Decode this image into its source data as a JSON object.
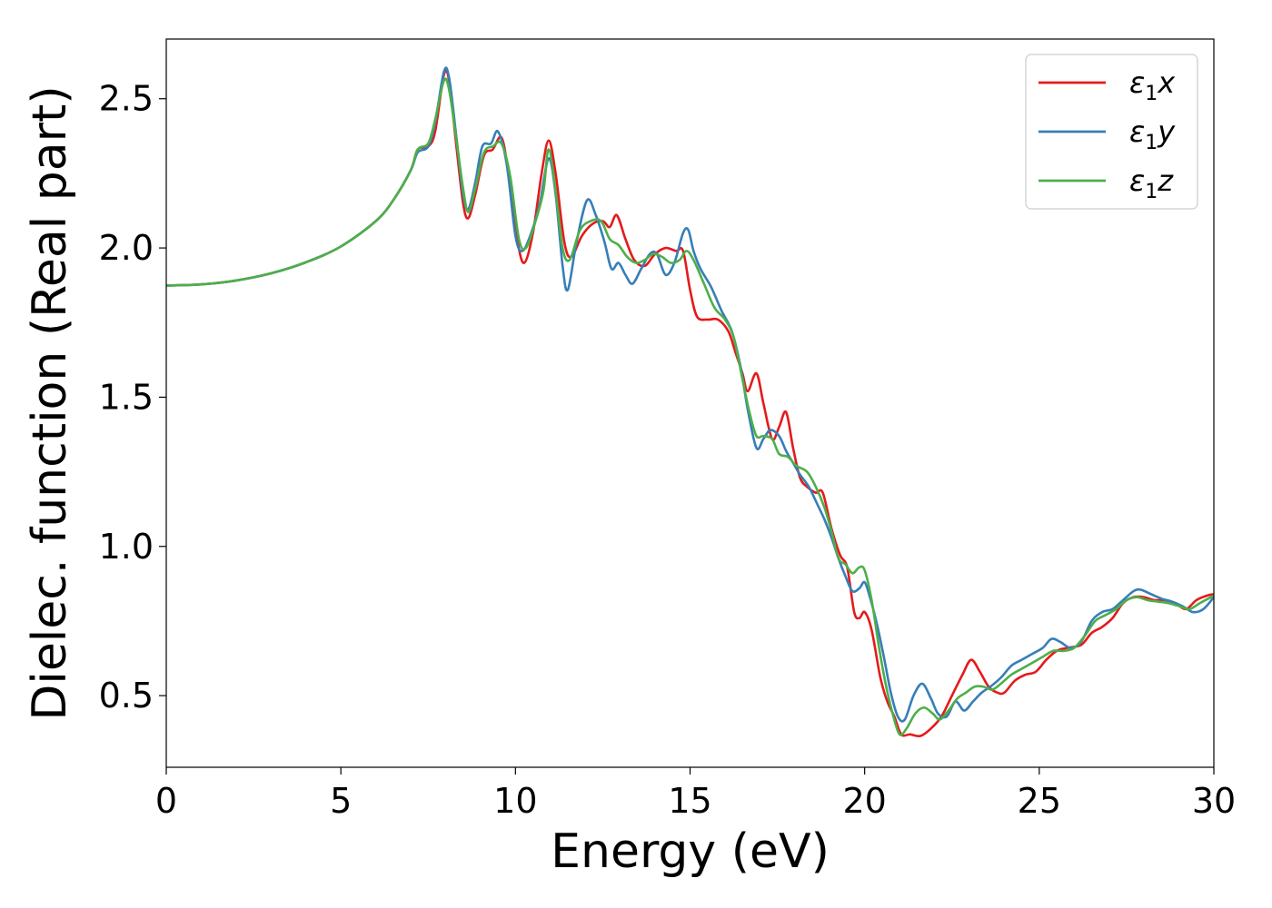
{
  "colors": {
    "x": "#e41a1c",
    "y": "#377eb8",
    "z": "#4daf4a"
  },
  "chart_data": {
    "type": "line",
    "title": "",
    "xlabel": "Energy (eV)",
    "ylabel": "Dielec. function (Real part)",
    "xlim": [
      0,
      30
    ],
    "ylim": [
      0.26,
      2.7
    ],
    "xticks": [
      0,
      5,
      10,
      15,
      20,
      25,
      30
    ],
    "xtick_labels": [
      "0",
      "5",
      "10",
      "15",
      "20",
      "25",
      "30"
    ],
    "yticks": [
      0.5,
      1.0,
      1.5,
      2.0,
      2.5
    ],
    "ytick_labels": [
      "0.5",
      "1.0",
      "1.5",
      "2.0",
      "2.5"
    ],
    "grid": false,
    "legend_position": "top-right",
    "series": [
      {
        "name": "ε1x",
        "symbol": "ε",
        "sub": "1",
        "suffix": "x",
        "color": "#e41a1c",
        "points": [
          [
            0,
            1.874
          ],
          [
            1,
            1.878
          ],
          [
            2,
            1.891
          ],
          [
            3,
            1.915
          ],
          [
            4,
            1.952
          ],
          [
            5,
            2.005
          ],
          [
            6,
            2.09
          ],
          [
            6.5,
            2.16
          ],
          [
            7,
            2.26
          ],
          [
            7.2,
            2.33
          ],
          [
            7.5,
            2.34
          ],
          [
            7.7,
            2.39
          ],
          [
            7.95,
            2.58
          ],
          [
            8.1,
            2.56
          ],
          [
            8.3,
            2.35
          ],
          [
            8.5,
            2.15
          ],
          [
            8.65,
            2.1
          ],
          [
            8.85,
            2.18
          ],
          [
            9.1,
            2.31
          ],
          [
            9.35,
            2.33
          ],
          [
            9.6,
            2.37
          ],
          [
            9.8,
            2.25
          ],
          [
            10.05,
            2.03
          ],
          [
            10.25,
            1.95
          ],
          [
            10.5,
            2.05
          ],
          [
            10.75,
            2.25
          ],
          [
            10.95,
            2.36
          ],
          [
            11.15,
            2.25
          ],
          [
            11.4,
            2.02
          ],
          [
            11.6,
            1.97
          ],
          [
            11.9,
            2.04
          ],
          [
            12.2,
            2.08
          ],
          [
            12.5,
            2.09
          ],
          [
            12.7,
            2.07
          ],
          [
            12.9,
            2.11
          ],
          [
            13.15,
            2.03
          ],
          [
            13.4,
            1.96
          ],
          [
            13.7,
            1.94
          ],
          [
            14,
            1.98
          ],
          [
            14.3,
            2
          ],
          [
            14.6,
            1.99
          ],
          [
            14.8,
            1.99
          ],
          [
            15,
            1.86
          ],
          [
            15.2,
            1.77
          ],
          [
            15.5,
            1.76
          ],
          [
            15.8,
            1.76
          ],
          [
            16.1,
            1.72
          ],
          [
            16.3,
            1.65
          ],
          [
            16.5,
            1.58
          ],
          [
            16.65,
            1.52
          ],
          [
            16.9,
            1.58
          ],
          [
            17.1,
            1.48
          ],
          [
            17.35,
            1.36
          ],
          [
            17.55,
            1.4
          ],
          [
            17.75,
            1.45
          ],
          [
            17.95,
            1.33
          ],
          [
            18.15,
            1.23
          ],
          [
            18.35,
            1.2
          ],
          [
            18.6,
            1.18
          ],
          [
            18.8,
            1.18
          ],
          [
            19.05,
            1.06
          ],
          [
            19.3,
            0.97
          ],
          [
            19.5,
            0.93
          ],
          [
            19.7,
            0.78
          ],
          [
            19.85,
            0.76
          ],
          [
            20,
            0.78
          ],
          [
            20.2,
            0.72
          ],
          [
            20.45,
            0.56
          ],
          [
            20.65,
            0.48
          ],
          [
            20.85,
            0.43
          ],
          [
            21.05,
            0.37
          ],
          [
            21.3,
            0.37
          ],
          [
            21.6,
            0.365
          ],
          [
            21.9,
            0.39
          ],
          [
            22.2,
            0.43
          ],
          [
            22.5,
            0.5
          ],
          [
            22.8,
            0.57
          ],
          [
            23.05,
            0.62
          ],
          [
            23.3,
            0.58
          ],
          [
            23.55,
            0.53
          ],
          [
            23.8,
            0.51
          ],
          [
            24,
            0.51
          ],
          [
            24.3,
            0.55
          ],
          [
            24.6,
            0.57
          ],
          [
            24.9,
            0.58
          ],
          [
            25.2,
            0.62
          ],
          [
            25.5,
            0.65
          ],
          [
            25.8,
            0.66
          ],
          [
            26.2,
            0.67
          ],
          [
            26.5,
            0.71
          ],
          [
            26.8,
            0.73
          ],
          [
            27.1,
            0.76
          ],
          [
            27.4,
            0.81
          ],
          [
            27.7,
            0.83
          ],
          [
            28,
            0.83
          ],
          [
            28.3,
            0.82
          ],
          [
            28.6,
            0.82
          ],
          [
            28.9,
            0.81
          ],
          [
            29.2,
            0.79
          ],
          [
            29.5,
            0.82
          ],
          [
            29.8,
            0.835
          ],
          [
            30,
            0.84
          ]
        ]
      },
      {
        "name": "ε1y",
        "symbol": "ε",
        "sub": "1",
        "suffix": "y",
        "color": "#377eb8",
        "points": [
          [
            0,
            1.874
          ],
          [
            1,
            1.878
          ],
          [
            2,
            1.891
          ],
          [
            3,
            1.915
          ],
          [
            4,
            1.952
          ],
          [
            5,
            2.005
          ],
          [
            6,
            2.09
          ],
          [
            6.5,
            2.16
          ],
          [
            7,
            2.26
          ],
          [
            7.2,
            2.32
          ],
          [
            7.5,
            2.34
          ],
          [
            7.7,
            2.42
          ],
          [
            7.95,
            2.59
          ],
          [
            8.1,
            2.57
          ],
          [
            8.3,
            2.38
          ],
          [
            8.5,
            2.18
          ],
          [
            8.65,
            2.13
          ],
          [
            8.85,
            2.22
          ],
          [
            9.05,
            2.34
          ],
          [
            9.3,
            2.35
          ],
          [
            9.5,
            2.39
          ],
          [
            9.75,
            2.28
          ],
          [
            10,
            2.04
          ],
          [
            10.2,
            1.99
          ],
          [
            10.45,
            2.05
          ],
          [
            10.7,
            2.15
          ],
          [
            10.95,
            2.3
          ],
          [
            11.15,
            2.18
          ],
          [
            11.35,
            1.94
          ],
          [
            11.5,
            1.86
          ],
          [
            11.75,
            2.02
          ],
          [
            12.05,
            2.16
          ],
          [
            12.3,
            2.11
          ],
          [
            12.55,
            2.02
          ],
          [
            12.75,
            1.93
          ],
          [
            12.95,
            1.95
          ],
          [
            13.15,
            1.91
          ],
          [
            13.35,
            1.88
          ],
          [
            13.6,
            1.93
          ],
          [
            13.85,
            1.98
          ],
          [
            14.05,
            1.98
          ],
          [
            14.3,
            1.91
          ],
          [
            14.55,
            1.95
          ],
          [
            14.8,
            2.05
          ],
          [
            14.95,
            2.06
          ],
          [
            15.1,
            1.99
          ],
          [
            15.3,
            1.93
          ],
          [
            15.6,
            1.87
          ],
          [
            15.9,
            1.79
          ],
          [
            16.2,
            1.72
          ],
          [
            16.45,
            1.6
          ],
          [
            16.65,
            1.46
          ],
          [
            16.9,
            1.33
          ],
          [
            17.1,
            1.36
          ],
          [
            17.3,
            1.39
          ],
          [
            17.55,
            1.37
          ],
          [
            17.75,
            1.32
          ],
          [
            17.95,
            1.28
          ],
          [
            18.15,
            1.24
          ],
          [
            18.4,
            1.2
          ],
          [
            18.65,
            1.14
          ],
          [
            18.85,
            1.09
          ],
          [
            19.05,
            1.03
          ],
          [
            19.25,
            0.96
          ],
          [
            19.45,
            0.9
          ],
          [
            19.65,
            0.85
          ],
          [
            19.85,
            0.86
          ],
          [
            20,
            0.88
          ],
          [
            20.15,
            0.83
          ],
          [
            20.35,
            0.74
          ],
          [
            20.55,
            0.63
          ],
          [
            20.75,
            0.51
          ],
          [
            20.95,
            0.43
          ],
          [
            21.15,
            0.42
          ],
          [
            21.4,
            0.5
          ],
          [
            21.65,
            0.54
          ],
          [
            21.9,
            0.49
          ],
          [
            22.1,
            0.44
          ],
          [
            22.35,
            0.43
          ],
          [
            22.6,
            0.48
          ],
          [
            22.85,
            0.45
          ],
          [
            23.1,
            0.48
          ],
          [
            23.35,
            0.51
          ],
          [
            23.6,
            0.53
          ],
          [
            23.9,
            0.56
          ],
          [
            24.2,
            0.6
          ],
          [
            24.5,
            0.62
          ],
          [
            24.8,
            0.64
          ],
          [
            25.1,
            0.66
          ],
          [
            25.35,
            0.69
          ],
          [
            25.6,
            0.68
          ],
          [
            25.9,
            0.66
          ],
          [
            26.2,
            0.68
          ],
          [
            26.5,
            0.75
          ],
          [
            26.8,
            0.78
          ],
          [
            27.1,
            0.79
          ],
          [
            27.4,
            0.82
          ],
          [
            27.7,
            0.85
          ],
          [
            27.9,
            0.855
          ],
          [
            28.2,
            0.84
          ],
          [
            28.5,
            0.825
          ],
          [
            28.8,
            0.815
          ],
          [
            29.1,
            0.8
          ],
          [
            29.4,
            0.78
          ],
          [
            29.7,
            0.79
          ],
          [
            30,
            0.83
          ]
        ]
      },
      {
        "name": "ε1z",
        "symbol": "ε",
        "sub": "1",
        "suffix": "z",
        "color": "#4daf4a",
        "points": [
          [
            0,
            1.874
          ],
          [
            1,
            1.878
          ],
          [
            2,
            1.891
          ],
          [
            3,
            1.915
          ],
          [
            4,
            1.952
          ],
          [
            5,
            2.005
          ],
          [
            6,
            2.09
          ],
          [
            6.5,
            2.16
          ],
          [
            7,
            2.26
          ],
          [
            7.2,
            2.33
          ],
          [
            7.5,
            2.35
          ],
          [
            7.7,
            2.43
          ],
          [
            7.95,
            2.56
          ],
          [
            8.1,
            2.53
          ],
          [
            8.3,
            2.37
          ],
          [
            8.5,
            2.2
          ],
          [
            8.65,
            2.12
          ],
          [
            8.85,
            2.2
          ],
          [
            9.1,
            2.32
          ],
          [
            9.35,
            2.34
          ],
          [
            9.6,
            2.35
          ],
          [
            9.85,
            2.24
          ],
          [
            10.1,
            2.03
          ],
          [
            10.3,
            2
          ],
          [
            10.55,
            2.08
          ],
          [
            10.8,
            2.19
          ],
          [
            10.95,
            2.33
          ],
          [
            11.15,
            2.19
          ],
          [
            11.35,
            2
          ],
          [
            11.55,
            1.96
          ],
          [
            11.85,
            2.06
          ],
          [
            12.15,
            2.09
          ],
          [
            12.45,
            2.09
          ],
          [
            12.7,
            2.03
          ],
          [
            12.95,
            2.01
          ],
          [
            13.2,
            1.97
          ],
          [
            13.45,
            1.95
          ],
          [
            13.7,
            1.96
          ],
          [
            13.95,
            1.98
          ],
          [
            14.2,
            1.97
          ],
          [
            14.45,
            1.95
          ],
          [
            14.7,
            1.96
          ],
          [
            14.9,
            1.99
          ],
          [
            15.1,
            1.96
          ],
          [
            15.4,
            1.88
          ],
          [
            15.7,
            1.8
          ],
          [
            16,
            1.76
          ],
          [
            16.25,
            1.7
          ],
          [
            16.5,
            1.56
          ],
          [
            16.7,
            1.45
          ],
          [
            16.9,
            1.37
          ],
          [
            17.1,
            1.37
          ],
          [
            17.35,
            1.36
          ],
          [
            17.55,
            1.31
          ],
          [
            17.8,
            1.3
          ],
          [
            18.05,
            1.27
          ],
          [
            18.35,
            1.25
          ],
          [
            18.6,
            1.2
          ],
          [
            18.85,
            1.13
          ],
          [
            19.05,
            1.05
          ],
          [
            19.25,
            0.96
          ],
          [
            19.45,
            0.94
          ],
          [
            19.65,
            0.91
          ],
          [
            19.85,
            0.93
          ],
          [
            20,
            0.92
          ],
          [
            20.2,
            0.82
          ],
          [
            20.4,
            0.67
          ],
          [
            20.6,
            0.54
          ],
          [
            20.8,
            0.44
          ],
          [
            21,
            0.37
          ],
          [
            21.2,
            0.39
          ],
          [
            21.45,
            0.44
          ],
          [
            21.7,
            0.46
          ],
          [
            21.95,
            0.44
          ],
          [
            22.15,
            0.42
          ],
          [
            22.4,
            0.45
          ],
          [
            22.65,
            0.49
          ],
          [
            22.9,
            0.51
          ],
          [
            23.15,
            0.53
          ],
          [
            23.4,
            0.53
          ],
          [
            23.65,
            0.52
          ],
          [
            23.9,
            0.54
          ],
          [
            24.2,
            0.57
          ],
          [
            24.5,
            0.59
          ],
          [
            24.8,
            0.61
          ],
          [
            25.1,
            0.63
          ],
          [
            25.4,
            0.65
          ],
          [
            25.7,
            0.65
          ],
          [
            26,
            0.66
          ],
          [
            26.3,
            0.7
          ],
          [
            26.6,
            0.75
          ],
          [
            26.9,
            0.77
          ],
          [
            27.2,
            0.79
          ],
          [
            27.5,
            0.82
          ],
          [
            27.8,
            0.83
          ],
          [
            28.1,
            0.82
          ],
          [
            28.4,
            0.815
          ],
          [
            28.7,
            0.81
          ],
          [
            29,
            0.8
          ],
          [
            29.3,
            0.79
          ],
          [
            29.6,
            0.81
          ],
          [
            30,
            0.835
          ]
        ]
      }
    ]
  }
}
